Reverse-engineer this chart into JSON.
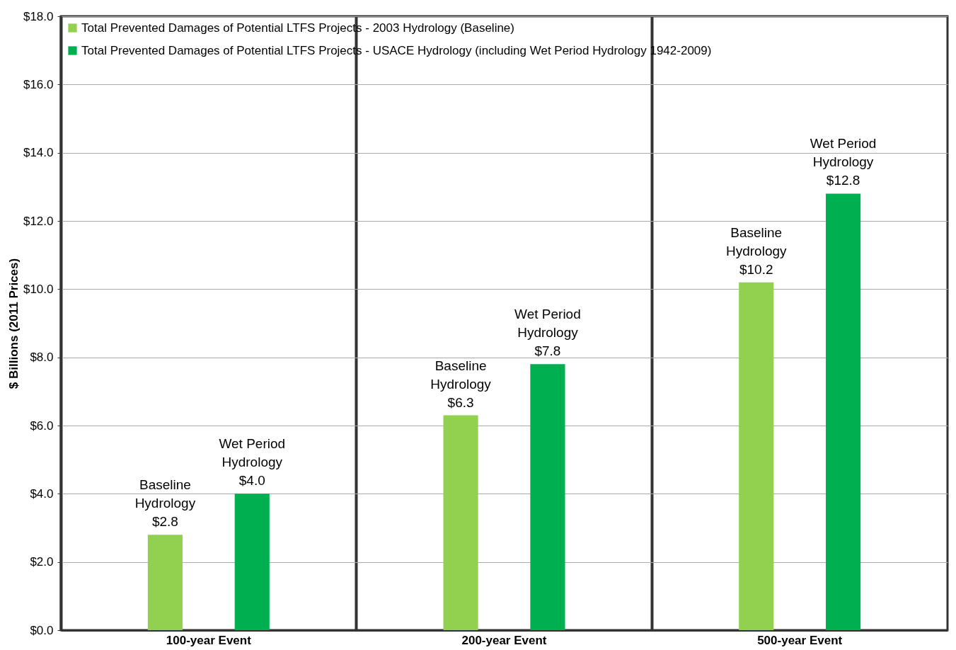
{
  "chart_data": {
    "type": "bar",
    "ylabel": "$ Billions (2011 Prices)",
    "categories": [
      "100-year Event",
      "200-year Event",
      "500-year Event"
    ],
    "series": [
      {
        "name": "Total Prevented Damages of Potential LTFS Projects - 2003 Hydrology (Baseline)",
        "color": "#92d050",
        "values": [
          2.8,
          6.3,
          10.2
        ],
        "value_labels": [
          "Baseline\nHydrology\n$2.8",
          "Baseline\nHydrology\n$6.3",
          "Baseline\nHydrology\n$10.2"
        ]
      },
      {
        "name": "Total Prevented Damages of Potential LTFS Projects - USACE Hydrology (including Wet Period Hydrology 1942-2009)",
        "color": "#00b050",
        "values": [
          4.0,
          7.8,
          12.8
        ],
        "value_labels": [
          "Wet Period\nHydrology\n$4.0",
          "Wet Period\nHydrology\n$7.8",
          "Wet Period\nHydrology\n$12.8"
        ]
      }
    ],
    "ylim": [
      0,
      18
    ],
    "yticks": [
      {
        "value": 0,
        "label": "$0.0"
      },
      {
        "value": 2,
        "label": "$2.0"
      },
      {
        "value": 4,
        "label": "$4.0"
      },
      {
        "value": 6,
        "label": "$6.0"
      },
      {
        "value": 8,
        "label": "$8.0"
      },
      {
        "value": 10,
        "label": "$10.0"
      },
      {
        "value": 12,
        "label": "$12.0"
      },
      {
        "value": 14,
        "label": "$14.0"
      },
      {
        "value": 16,
        "label": "$16.0"
      },
      {
        "value": 18,
        "label": "$18.0"
      }
    ],
    "grid": true,
    "legend": "top left"
  }
}
